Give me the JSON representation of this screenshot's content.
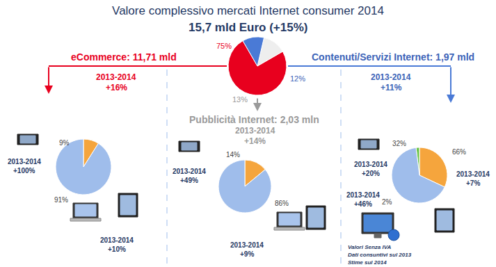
{
  "period": "2013-2014",
  "notes": [
    "Valori Senza IVA",
    "Dati consuntivi sul 2013",
    "Stime sul 2014"
  ],
  "chart_data": [
    {
      "type": "pie",
      "title": "Valore complessivo mercati Internet consumer 2014",
      "subtitle": "15,7 mld Euro (+15%)",
      "categories": [
        "eCommerce: 11,71 mld",
        "Pubblicità Internet: 2,03 mln",
        "Contenuti/Servizi Internet: 1,97 mld"
      ],
      "values": [
        75,
        13,
        12
      ],
      "value_labels": [
        "75%",
        "13%",
        "12%"
      ],
      "colors": [
        "#e8001e",
        "#eeeeee",
        "#4a7ad6"
      ],
      "growth": [
        {
          "value": 16,
          "label": "+16%"
        },
        {
          "value": 14,
          "label": "+14%"
        },
        {
          "value": 11,
          "label": "+11%"
        }
      ],
      "data_labels": true
    },
    {
      "type": "pie",
      "values": [
        9,
        91
      ],
      "value_labels": [
        "9%",
        "91%"
      ],
      "colors": [
        "#f5a53d",
        "#9fbdeb"
      ],
      "growth": [
        {
          "value": 100,
          "label": "+100%"
        },
        {
          "value": 10,
          "label": "+10%"
        }
      ],
      "data_labels": true
    },
    {
      "type": "pie",
      "values": [
        14,
        86
      ],
      "value_labels": [
        "14%",
        "86%"
      ],
      "colors": [
        "#f5a53d",
        "#9fbdeb"
      ],
      "growth": [
        {
          "value": 49,
          "label": "+49%"
        },
        {
          "value": 9,
          "label": "+9%"
        }
      ],
      "data_labels": true
    },
    {
      "type": "pie",
      "values": [
        32,
        2,
        66
      ],
      "value_labels": [
        "32%",
        "2%",
        "66%"
      ],
      "colors": [
        "#f5a53d",
        "#6cc54a",
        "#9fbdeb"
      ],
      "growth": [
        {
          "value": 20,
          "label": "+20%"
        },
        {
          "value": 46,
          "label": "+46%"
        },
        {
          "value": 7,
          "label": "+7%"
        }
      ],
      "data_labels": true
    }
  ]
}
